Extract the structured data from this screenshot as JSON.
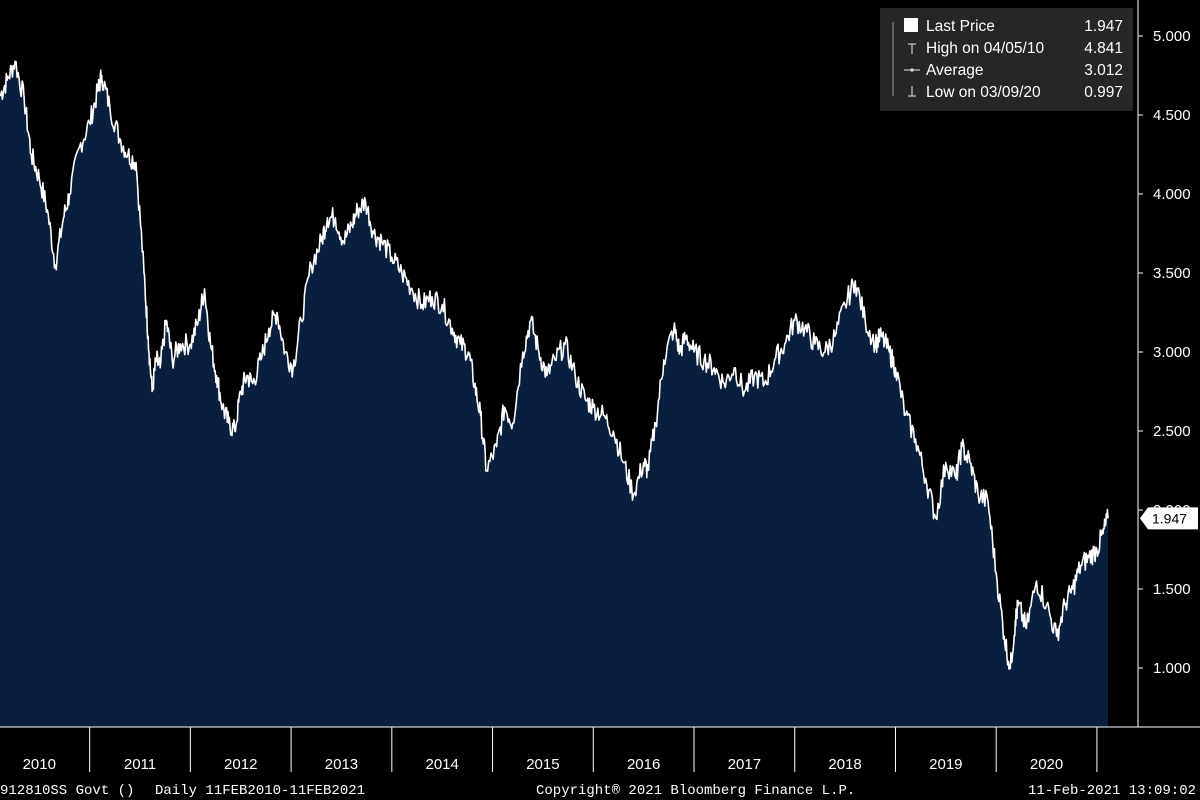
{
  "chart_data": {
    "type": "area",
    "y_ticks": [
      "5.000",
      "4.500",
      "4.000",
      "3.500",
      "3.000",
      "2.500",
      "2.000",
      "1.500",
      "1.000"
    ],
    "y_tick_values": [
      5.0,
      4.5,
      4.0,
      3.5,
      3.0,
      2.5,
      2.0,
      1.5,
      1.0
    ],
    "ylim": [
      0.65,
      5.2
    ],
    "grid": false,
    "legend_position": "top-right",
    "x_categories": [
      "2010",
      "2011",
      "2012",
      "2013",
      "2014",
      "2015",
      "2016",
      "2017",
      "2018",
      "2019",
      "2020"
    ],
    "series": [
      {
        "name": "Last Price",
        "x": [
          2010.11,
          2010.18,
          2010.26,
          2010.35,
          2010.42,
          2010.5,
          2010.58,
          2010.66,
          2010.74,
          2010.8,
          2010.9,
          2011.0,
          2011.08,
          2011.12,
          2011.2,
          2011.3,
          2011.38,
          2011.46,
          2011.54,
          2011.58,
          2011.62,
          2011.66,
          2011.7,
          2011.76,
          2011.82,
          2011.9,
          2012.0,
          2012.08,
          2012.14,
          2012.2,
          2012.26,
          2012.32,
          2012.38,
          2012.44,
          2012.5,
          2012.56,
          2012.62,
          2012.7,
          2012.78,
          2012.86,
          2012.94,
          2013.02,
          2013.1,
          2013.2,
          2013.3,
          2013.36,
          2013.44,
          2013.52,
          2013.6,
          2013.66,
          2013.74,
          2013.82,
          2013.9,
          2014.0,
          2014.1,
          2014.2,
          2014.3,
          2014.4,
          2014.5,
          2014.6,
          2014.68,
          2014.76,
          2014.82,
          2014.88,
          2014.94,
          2015.04,
          2015.12,
          2015.2,
          2015.3,
          2015.38,
          2015.46,
          2015.54,
          2015.62,
          2015.72,
          2015.82,
          2015.92,
          2016.0,
          2016.1,
          2016.2,
          2016.3,
          2016.4,
          2016.5,
          2016.54,
          2016.62,
          2016.7,
          2016.8,
          2016.86,
          2016.92,
          2017.0,
          2017.1,
          2017.2,
          2017.3,
          2017.4,
          2017.5,
          2017.6,
          2017.7,
          2017.8,
          2017.9,
          2018.0,
          2018.1,
          2018.2,
          2018.3,
          2018.4,
          2018.5,
          2018.6,
          2018.7,
          2018.8,
          2018.86,
          2018.94,
          2019.0,
          2019.1,
          2019.2,
          2019.3,
          2019.4,
          2019.5,
          2019.6,
          2019.66,
          2019.74,
          2019.82,
          2019.92,
          2020.0,
          2020.08,
          2020.14,
          2020.19,
          2020.22,
          2020.3,
          2020.4,
          2020.5,
          2020.6,
          2020.68,
          2020.76,
          2020.84,
          2020.92,
          2021.0,
          2021.06,
          2021.11
        ],
        "values": [
          4.62,
          4.72,
          4.84,
          4.6,
          4.25,
          4.1,
          3.9,
          3.55,
          3.85,
          4.0,
          4.3,
          4.45,
          4.65,
          4.75,
          4.55,
          4.35,
          4.25,
          4.2,
          3.5,
          3.1,
          2.75,
          2.95,
          2.9,
          3.2,
          2.95,
          3.05,
          3.05,
          3.2,
          3.4,
          3.05,
          2.85,
          2.65,
          2.55,
          2.5,
          2.75,
          2.85,
          2.8,
          2.95,
          3.15,
          3.25,
          3.0,
          2.9,
          3.2,
          3.55,
          3.7,
          3.85,
          3.85,
          3.7,
          3.8,
          3.9,
          3.95,
          3.75,
          3.7,
          3.6,
          3.5,
          3.4,
          3.3,
          3.35,
          3.3,
          3.15,
          3.05,
          3.0,
          2.8,
          2.6,
          2.25,
          2.4,
          2.65,
          2.55,
          3.0,
          3.2,
          3.0,
          2.85,
          2.95,
          3.05,
          2.85,
          2.7,
          2.65,
          2.6,
          2.5,
          2.3,
          2.1,
          2.3,
          2.25,
          2.55,
          2.95,
          3.15,
          3.0,
          3.1,
          3.0,
          2.95,
          2.9,
          2.8,
          2.9,
          2.75,
          2.85,
          2.8,
          2.95,
          3.05,
          3.2,
          3.15,
          3.05,
          3.0,
          3.1,
          3.3,
          3.45,
          3.2,
          3.05,
          3.1,
          3.0,
          2.9,
          2.6,
          2.45,
          2.2,
          1.95,
          2.3,
          2.2,
          2.4,
          2.3,
          2.1,
          2.05,
          1.6,
          1.2,
          0.997,
          1.3,
          1.4,
          1.25,
          1.55,
          1.4,
          1.2,
          1.4,
          1.5,
          1.65,
          1.7,
          1.75,
          1.85,
          1.947
        ]
      }
    ]
  },
  "legend": {
    "items": [
      {
        "label": "Last Price",
        "value": "1.947",
        "symbol": "square"
      },
      {
        "label": "High on 04/05/10",
        "value": "4.841",
        "symbol": "high"
      },
      {
        "label": "Average",
        "value": "3.012",
        "symbol": "line"
      },
      {
        "label": "Low on 03/09/20",
        "value": "0.997",
        "symbol": "low"
      }
    ]
  },
  "last_price_tag": "1.947",
  "footer": {
    "security": "912810SS Govt ()",
    "period": "Daily 11FEB2010-11FEB2021",
    "copyright": "Copyright® 2021 Bloomberg Finance L.P.",
    "timestamp": "11-Feb-2021 13:09:02"
  },
  "colors": {
    "background": "#000000",
    "area_fill": "#0a1f3d",
    "line": "#ffffff",
    "legend_bg": "#262626"
  }
}
